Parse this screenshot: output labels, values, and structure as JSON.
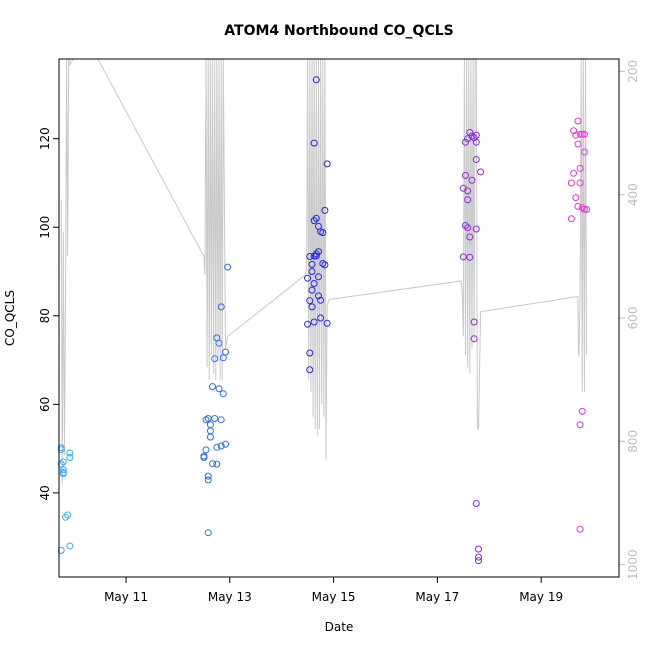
{
  "chart_data": {
    "type": "scatter",
    "title": "ATOM4 Northbound CO_QCLS",
    "xlabel": "Date",
    "ylabel": "CO_QCLS",
    "xlim": [
      "2018-05-09 17:00",
      "2018-05-20 12:00"
    ],
    "ylim": [
      21,
      138
    ],
    "x_ticks": [
      {
        "date": "2018-05-11",
        "label": "May 11"
      },
      {
        "date": "2018-05-13",
        "label": "May 13"
      },
      {
        "date": "2018-05-15",
        "label": "May 15"
      },
      {
        "date": "2018-05-17",
        "label": "May 17"
      },
      {
        "date": "2018-05-19",
        "label": "May 19"
      }
    ],
    "y_ticks": [
      40,
      60,
      80,
      100,
      120
    ],
    "right_axis": {
      "ylim": [
        1020,
        180
      ],
      "ticks": [
        200,
        400,
        600,
        800,
        1000
      ],
      "color": "#bdbdbd"
    },
    "grid": false,
    "series": [
      {
        "color": "#3fa9f5",
        "marker": "open-circle",
        "points": [
          [
            "2018-05-09 18:00",
            50.2
          ],
          [
            "2018-05-09 18:00",
            49.8
          ],
          [
            "2018-05-09 18:00",
            46.5
          ],
          [
            "2018-05-09 19:00",
            47.0
          ],
          [
            "2018-05-09 19:00",
            45.2
          ],
          [
            "2018-05-09 19:00",
            44.6
          ],
          [
            "2018-05-09 19:00",
            44.3
          ],
          [
            "2018-05-09 20:00",
            34.5
          ],
          [
            "2018-05-09 21:00",
            35.0
          ],
          [
            "2018-05-09 18:00",
            27.0
          ],
          [
            "2018-05-09 22:00",
            28.0
          ],
          [
            "2018-05-09 22:00",
            49.0
          ],
          [
            "2018-05-09 22:00",
            48.0
          ]
        ]
      },
      {
        "color": "#2e6ff2",
        "marker": "open-circle",
        "points": [
          [
            "2018-05-12 12:00",
            48.0
          ],
          [
            "2018-05-12 12:00",
            48.3
          ],
          [
            "2018-05-12 13:00",
            49.7
          ],
          [
            "2018-05-12 13:00",
            56.5
          ],
          [
            "2018-05-12 14:00",
            56.8
          ],
          [
            "2018-05-12 14:00",
            43.8
          ],
          [
            "2018-05-12 14:00",
            42.9
          ],
          [
            "2018-05-12 15:00",
            54.0
          ],
          [
            "2018-05-12 15:00",
            55.4
          ],
          [
            "2018-05-12 15:00",
            52.6
          ],
          [
            "2018-05-12 16:00",
            46.6
          ],
          [
            "2018-05-12 16:00",
            64.0
          ],
          [
            "2018-05-12 17:00",
            56.8
          ],
          [
            "2018-05-12 17:00",
            70.3
          ],
          [
            "2018-05-12 18:00",
            50.3
          ],
          [
            "2018-05-12 18:00",
            46.5
          ],
          [
            "2018-05-12 18:00",
            75.0
          ],
          [
            "2018-05-12 19:00",
            73.8
          ],
          [
            "2018-05-12 19:00",
            63.5
          ],
          [
            "2018-05-12 20:00",
            50.6
          ],
          [
            "2018-05-12 20:00",
            82.0
          ],
          [
            "2018-05-12 20:00",
            56.5
          ],
          [
            "2018-05-12 21:00",
            62.4
          ],
          [
            "2018-05-12 21:00",
            70.5
          ],
          [
            "2018-05-12 22:00",
            71.8
          ],
          [
            "2018-05-12 22:00",
            51.0
          ],
          [
            "2018-05-12 23:00",
            91.0
          ],
          [
            "2018-05-12 14:00",
            31.0
          ]
        ]
      },
      {
        "color": "#2626f0",
        "marker": "open-circle",
        "points": [
          [
            "2018-05-14 12:00",
            88.5
          ],
          [
            "2018-05-14 12:00",
            78.1
          ],
          [
            "2018-05-14 13:00",
            93.4
          ],
          [
            "2018-05-14 13:00",
            83.4
          ],
          [
            "2018-05-14 13:00",
            71.6
          ],
          [
            "2018-05-14 13:00",
            67.8
          ],
          [
            "2018-05-14 14:00",
            85.8
          ],
          [
            "2018-05-14 14:00",
            90.0
          ],
          [
            "2018-05-14 14:00",
            91.6
          ],
          [
            "2018-05-14 14:00",
            82.0
          ],
          [
            "2018-05-14 15:00",
            93.5
          ],
          [
            "2018-05-14 15:00",
            101.5
          ],
          [
            "2018-05-14 15:00",
            87.3
          ],
          [
            "2018-05-14 15:00",
            78.6
          ],
          [
            "2018-05-14 15:00",
            119.0
          ],
          [
            "2018-05-14 16:00",
            133.3
          ],
          [
            "2018-05-14 16:00",
            102.0
          ],
          [
            "2018-05-14 16:00",
            94.0
          ],
          [
            "2018-05-14 16:00",
            93.5
          ],
          [
            "2018-05-14 17:00",
            94.5
          ],
          [
            "2018-05-14 17:00",
            100.2
          ],
          [
            "2018-05-14 17:00",
            88.8
          ],
          [
            "2018-05-14 17:00",
            84.5
          ],
          [
            "2018-05-14 18:00",
            99.0
          ],
          [
            "2018-05-14 18:00",
            83.5
          ],
          [
            "2018-05-14 18:00",
            79.5
          ],
          [
            "2018-05-14 19:00",
            98.8
          ],
          [
            "2018-05-14 19:00",
            91.8
          ],
          [
            "2018-05-14 20:00",
            91.5
          ],
          [
            "2018-05-14 20:00",
            103.8
          ],
          [
            "2018-05-14 21:00",
            78.3
          ],
          [
            "2018-05-14 21:00",
            114.3
          ]
        ]
      },
      {
        "color": "#8a2be2",
        "marker": "open-circle",
        "points": [
          [
            "2018-05-17 12:00",
            108.8
          ],
          [
            "2018-05-17 12:00",
            93.3
          ],
          [
            "2018-05-17 13:00",
            119.2
          ],
          [
            "2018-05-17 13:00",
            111.7
          ],
          [
            "2018-05-17 13:00",
            100.4
          ],
          [
            "2018-05-17 14:00",
            120.0
          ],
          [
            "2018-05-17 14:00",
            108.2
          ],
          [
            "2018-05-17 14:00",
            99.9
          ],
          [
            "2018-05-17 15:00",
            121.4
          ],
          [
            "2018-05-17 15:00",
            97.8
          ],
          [
            "2018-05-17 15:00",
            93.2
          ],
          [
            "2018-05-17 16:00",
            120.6
          ],
          [
            "2018-05-17 16:00",
            110.6
          ],
          [
            "2018-05-17 17:00",
            120.2
          ],
          [
            "2018-05-17 17:00",
            78.6
          ],
          [
            "2018-05-17 17:00",
            74.8
          ],
          [
            "2018-05-17 18:00",
            120.8
          ],
          [
            "2018-05-17 18:00",
            119.2
          ],
          [
            "2018-05-17 18:00",
            115.3
          ],
          [
            "2018-05-17 18:00",
            99.6
          ],
          [
            "2018-05-17 18:00",
            37.6
          ],
          [
            "2018-05-17 19:00",
            27.3
          ],
          [
            "2018-05-17 19:00",
            25.5
          ],
          [
            "2018-05-17 19:00",
            24.7
          ],
          [
            "2018-05-17 20:00",
            112.5
          ],
          [
            "2018-05-17 14:00",
            106.2
          ]
        ]
      },
      {
        "color": "#e639d6",
        "marker": "open-circle",
        "points": [
          [
            "2018-05-19 14:00",
            101.9
          ],
          [
            "2018-05-19 14:00",
            110.0
          ],
          [
            "2018-05-19 15:00",
            112.2
          ],
          [
            "2018-05-19 15:00",
            121.8
          ],
          [
            "2018-05-19 16:00",
            106.7
          ],
          [
            "2018-05-19 16:00",
            120.8
          ],
          [
            "2018-05-19 17:00",
            118.8
          ],
          [
            "2018-05-19 17:00",
            104.7
          ],
          [
            "2018-05-19 17:00",
            124.0
          ],
          [
            "2018-05-19 18:00",
            121.0
          ],
          [
            "2018-05-19 18:00",
            113.3
          ],
          [
            "2018-05-19 18:00",
            110.0
          ],
          [
            "2018-05-19 18:00",
            55.4
          ],
          [
            "2018-05-19 18:00",
            31.8
          ],
          [
            "2018-05-19 19:00",
            121.0
          ],
          [
            "2018-05-19 19:00",
            104.4
          ],
          [
            "2018-05-19 19:00",
            58.4
          ],
          [
            "2018-05-19 20:00",
            117.0
          ],
          [
            "2018-05-19 20:00",
            121.0
          ],
          [
            "2018-05-19 20:00",
            104.1
          ],
          [
            "2018-05-19 21:00",
            104.0
          ]
        ]
      }
    ],
    "overlay_line": {
      "color": "#c8c8c8",
      "axis": "right",
      "points": [
        [
          "2018-05-09 18:00",
          408
        ],
        [
          "2018-05-09 18:30",
          870
        ],
        [
          "2018-05-09 19:00",
          460
        ],
        [
          "2018-05-09 19:30",
          822
        ],
        [
          "2018-05-09 20:00",
          570
        ],
        [
          "2018-05-09 20:30",
          180
        ],
        [
          "2018-05-09 21:00",
          500
        ],
        [
          "2018-05-09 21:30",
          180
        ],
        [
          "2018-05-09 22:00",
          180
        ],
        [
          "2018-05-09 22:00",
          190
        ],
        [
          "2018-05-09 23:30",
          180
        ],
        [
          "2018-05-10 11:00",
          160
        ],
        [
          "2018-05-12 12:00",
          500
        ],
        [
          "2018-05-12 12:30",
          530
        ],
        [
          "2018-05-12 13:00",
          180
        ],
        [
          "2018-05-12 13:30",
          680
        ],
        [
          "2018-05-12 14:00",
          180
        ],
        [
          "2018-05-12 14:30",
          700
        ],
        [
          "2018-05-12 15:00",
          180
        ],
        [
          "2018-05-12 15:30",
          660
        ],
        [
          "2018-05-12 16:00",
          180
        ],
        [
          "2018-05-12 16:30",
          690
        ],
        [
          "2018-05-12 17:00",
          180
        ],
        [
          "2018-05-12 17:30",
          700
        ],
        [
          "2018-05-12 18:00",
          180
        ],
        [
          "2018-05-12 18:30",
          670
        ],
        [
          "2018-05-12 19:00",
          180
        ],
        [
          "2018-05-12 19:30",
          700
        ],
        [
          "2018-05-12 20:00",
          180
        ],
        [
          "2018-05-12 20:30",
          700
        ],
        [
          "2018-05-12 21:00",
          180
        ],
        [
          "2018-05-12 22:00",
          650
        ],
        [
          "2018-05-12 23:00",
          630
        ],
        [
          "2018-05-14 11:00",
          530
        ],
        [
          "2018-05-14 11:30",
          520
        ],
        [
          "2018-05-14 12:00",
          180
        ],
        [
          "2018-05-14 12:30",
          700
        ],
        [
          "2018-05-14 13:00",
          180
        ],
        [
          "2018-05-14 13:30",
          720
        ],
        [
          "2018-05-14 14:00",
          180
        ],
        [
          "2018-05-14 14:30",
          760
        ],
        [
          "2018-05-14 15:00",
          180
        ],
        [
          "2018-05-14 15:30",
          780
        ],
        [
          "2018-05-14 16:00",
          180
        ],
        [
          "2018-05-14 16:30",
          790
        ],
        [
          "2018-05-14 17:00",
          180
        ],
        [
          "2018-05-14 17:30",
          780
        ],
        [
          "2018-05-14 18:00",
          180
        ],
        [
          "2018-05-14 18:30",
          740
        ],
        [
          "2018-05-14 19:00",
          180
        ],
        [
          "2018-05-14 19:30",
          760
        ],
        [
          "2018-05-14 20:00",
          180
        ],
        [
          "2018-05-14 20:30",
          830
        ],
        [
          "2018-05-14 21:00",
          580
        ],
        [
          "2018-05-14 22:00",
          570
        ],
        [
          "2018-05-17 11:00",
          540
        ],
        [
          "2018-05-17 11:30",
          560
        ],
        [
          "2018-05-17 12:00",
          630
        ],
        [
          "2018-05-17 12:30",
          180
        ],
        [
          "2018-05-17 13:00",
          660
        ],
        [
          "2018-05-17 13:30",
          180
        ],
        [
          "2018-05-17 14:00",
          680
        ],
        [
          "2018-05-17 14:30",
          180
        ],
        [
          "2018-05-17 15:00",
          690
        ],
        [
          "2018-05-17 15:30",
          180
        ],
        [
          "2018-05-17 16:00",
          650
        ],
        [
          "2018-05-17 16:30",
          180
        ],
        [
          "2018-05-17 17:00",
          640
        ],
        [
          "2018-05-17 17:30",
          180
        ],
        [
          "2018-05-17 18:00",
          180
        ],
        [
          "2018-05-17 18:30",
          780
        ],
        [
          "2018-05-17 19:00",
          780
        ],
        [
          "2018-05-17 20:00",
          590
        ],
        [
          "2018-05-19 17:00",
          565
        ],
        [
          "2018-05-19 17:15",
          660
        ],
        [
          "2018-05-19 17:30",
          660
        ],
        [
          "2018-05-19 18:00",
          560
        ],
        [
          "2018-05-19 18:30",
          180
        ],
        [
          "2018-05-19 19:00",
          720
        ],
        [
          "2018-05-19 19:30",
          180
        ],
        [
          "2018-05-19 20:00",
          720
        ],
        [
          "2018-05-19 20:30",
          180
        ],
        [
          "2018-05-19 21:00",
          660
        ]
      ]
    }
  }
}
